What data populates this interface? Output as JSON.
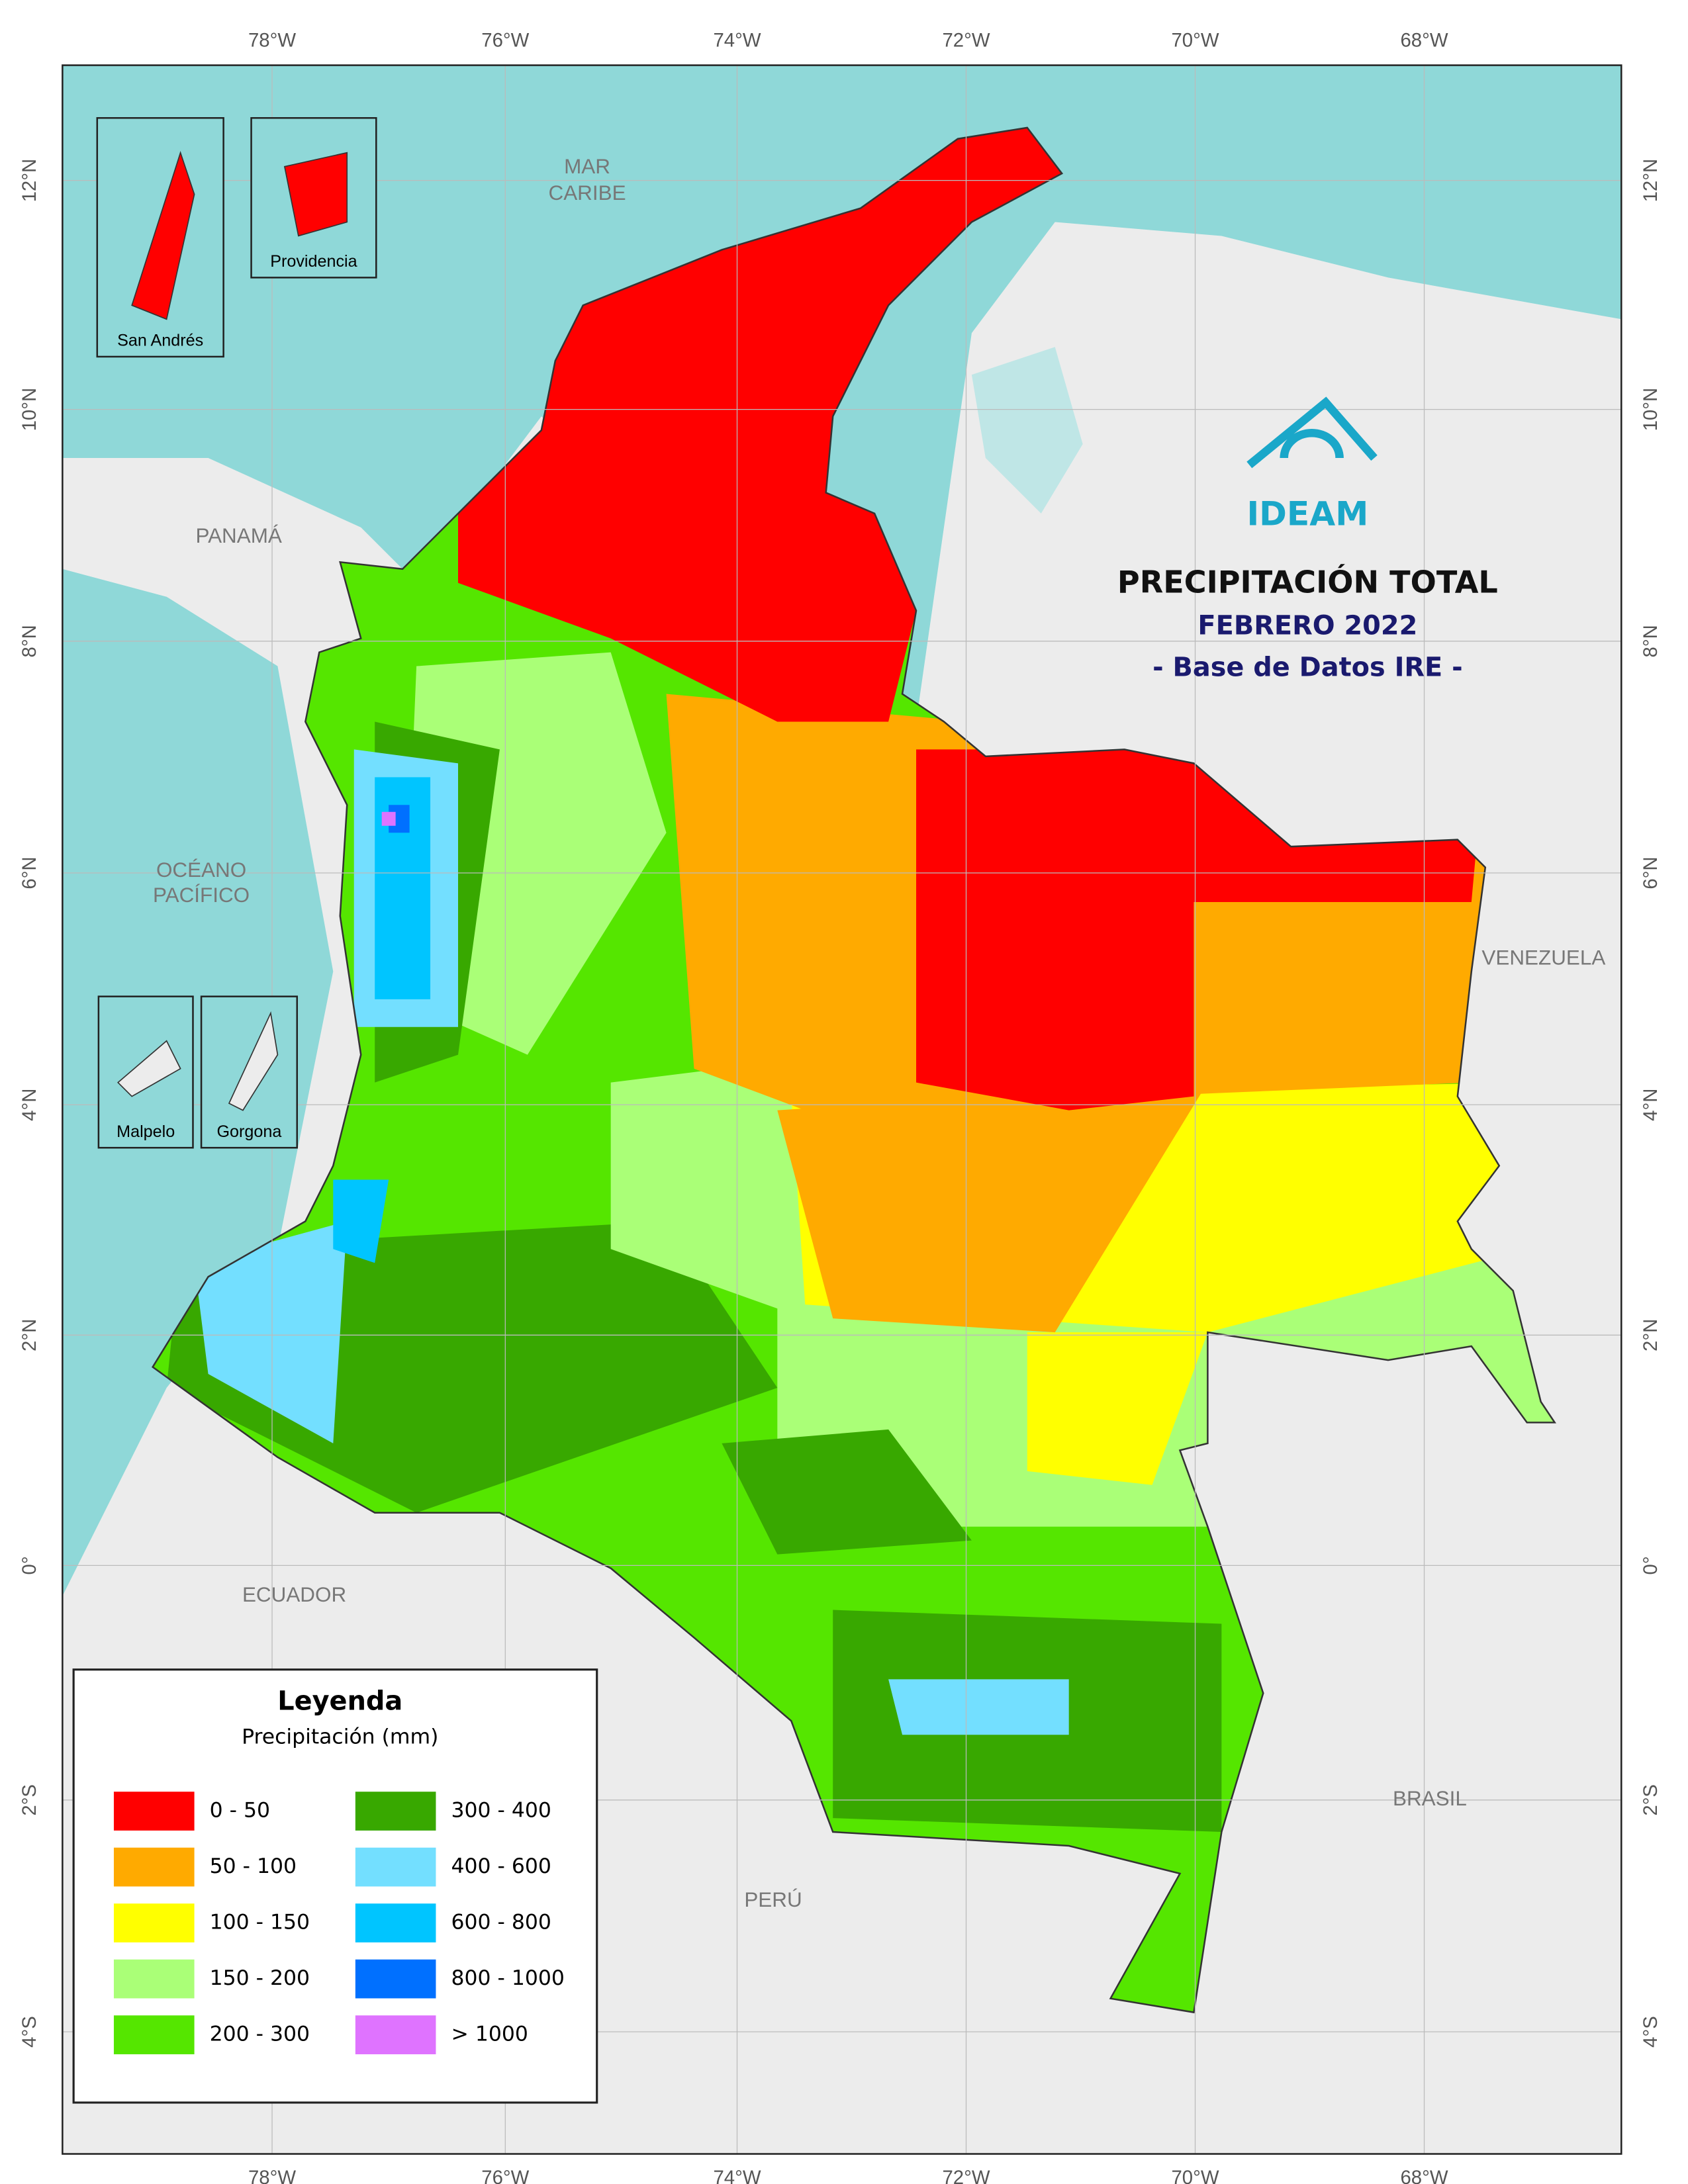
{
  "title": {
    "main": "PRECIPITACIÓN TOTAL",
    "period": "FEBRERO 2022",
    "source": "- Base de Datos IRE -"
  },
  "logo": "IDEAM",
  "map": {
    "lon_labels": [
      "78°W",
      "76°W",
      "74°W",
      "72°W",
      "70°W",
      "68°W"
    ],
    "lat_labels": [
      "12°N",
      "10°N",
      "8°N",
      "6°N",
      "4°N",
      "2°N",
      "0°",
      "2°S",
      "4°S"
    ],
    "places": {
      "sea_north": [
        "MAR",
        "CARIBE"
      ],
      "panama": "PANAMÁ",
      "sea_west": [
        "OCÉANO",
        "PACÍFICO"
      ],
      "venezuela": "VENEZUELA",
      "ecuador": "ECUADOR",
      "brasil": "BRASIL",
      "peru": "PERÚ"
    },
    "insets": [
      "San Andrés",
      "Providencia",
      "Malpelo",
      "Gorgona"
    ]
  },
  "legend": {
    "title": "Leyenda",
    "subtitle": "Precipitación (mm)",
    "items": [
      {
        "label": "0 - 50",
        "color": "#ff0000"
      },
      {
        "label": "50 - 100",
        "color": "#ffaa00"
      },
      {
        "label": "100 - 150",
        "color": "#ffff00"
      },
      {
        "label": "150 - 200",
        "color": "#aaff77"
      },
      {
        "label": "200 - 300",
        "color": "#55e600"
      },
      {
        "label": "300 - 400",
        "color": "#38a800"
      },
      {
        "label": "400 - 600",
        "color": "#73dfff"
      },
      {
        "label": "600 - 800",
        "color": "#00c5ff"
      },
      {
        "label": "800 - 1000",
        "color": "#0070ff"
      },
      {
        "label": "> 1000",
        "color": "#df73ff"
      }
    ]
  }
}
